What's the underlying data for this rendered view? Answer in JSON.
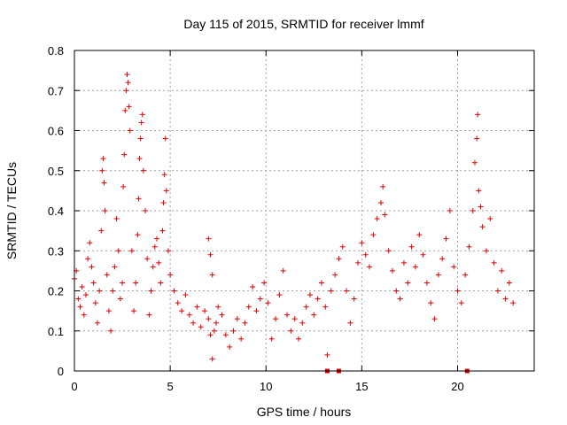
{
  "chart_data": {
    "type": "scatter",
    "title": "Day 115 of 2015, SRMTID for receiver lmmf",
    "xlabel": "GPS time / hours",
    "ylabel": "SRMTID / TECUs",
    "xlim": [
      0,
      24
    ],
    "ylim": [
      0,
      0.8
    ],
    "xticks": [
      0,
      5,
      10,
      15,
      20
    ],
    "yticks": [
      0,
      0.1,
      0.2,
      0.3,
      0.4,
      0.5,
      0.6,
      0.7,
      0.8
    ],
    "xtick_labels": [
      "0",
      "5",
      "10",
      "15",
      "20"
    ],
    "ytick_labels": [
      "0",
      "0.1",
      "0.2",
      "0.3",
      "0.4",
      "0.5",
      "0.6",
      "0.7",
      "0.8"
    ],
    "grid": true,
    "marker": "+",
    "color": "#e00000",
    "series": [
      {
        "name": "SRMTID",
        "points": [
          [
            0.0,
            0.23
          ],
          [
            0.1,
            0.25
          ],
          [
            0.2,
            0.18
          ],
          [
            0.3,
            0.16
          ],
          [
            0.4,
            0.21
          ],
          [
            0.5,
            0.14
          ],
          [
            0.6,
            0.19
          ],
          [
            0.7,
            0.28
          ],
          [
            0.8,
            0.32
          ],
          [
            0.9,
            0.26
          ],
          [
            1.0,
            0.22
          ],
          [
            1.1,
            0.17
          ],
          [
            1.2,
            0.12
          ],
          [
            1.3,
            0.2
          ],
          [
            1.4,
            0.35
          ],
          [
            1.45,
            0.5
          ],
          [
            1.5,
            0.53
          ],
          [
            1.55,
            0.47
          ],
          [
            1.6,
            0.4
          ],
          [
            1.7,
            0.24
          ],
          [
            1.8,
            0.15
          ],
          [
            1.9,
            0.1
          ],
          [
            2.0,
            0.2
          ],
          [
            2.1,
            0.26
          ],
          [
            2.2,
            0.38
          ],
          [
            2.3,
            0.3
          ],
          [
            2.4,
            0.18
          ],
          [
            2.5,
            0.22
          ],
          [
            2.55,
            0.46
          ],
          [
            2.6,
            0.54
          ],
          [
            2.65,
            0.65
          ],
          [
            2.7,
            0.7
          ],
          [
            2.75,
            0.74
          ],
          [
            2.8,
            0.72
          ],
          [
            2.85,
            0.66
          ],
          [
            2.9,
            0.6
          ],
          [
            3.0,
            0.3
          ],
          [
            3.1,
            0.15
          ],
          [
            3.2,
            0.22
          ],
          [
            3.3,
            0.34
          ],
          [
            3.35,
            0.43
          ],
          [
            3.4,
            0.53
          ],
          [
            3.45,
            0.58
          ],
          [
            3.5,
            0.62
          ],
          [
            3.55,
            0.64
          ],
          [
            3.6,
            0.5
          ],
          [
            3.7,
            0.4
          ],
          [
            3.8,
            0.28
          ],
          [
            3.9,
            0.14
          ],
          [
            4.0,
            0.2
          ],
          [
            4.1,
            0.26
          ],
          [
            4.2,
            0.31
          ],
          [
            4.3,
            0.33
          ],
          [
            4.4,
            0.27
          ],
          [
            4.5,
            0.22
          ],
          [
            4.6,
            0.35
          ],
          [
            4.65,
            0.42
          ],
          [
            4.7,
            0.49
          ],
          [
            4.75,
            0.58
          ],
          [
            4.8,
            0.45
          ],
          [
            4.9,
            0.3
          ],
          [
            5.0,
            0.24
          ],
          [
            5.2,
            0.2
          ],
          [
            5.4,
            0.17
          ],
          [
            5.6,
            0.15
          ],
          [
            5.8,
            0.19
          ],
          [
            6.0,
            0.14
          ],
          [
            6.2,
            0.12
          ],
          [
            6.4,
            0.16
          ],
          [
            6.6,
            0.11
          ],
          [
            6.8,
            0.15
          ],
          [
            7.0,
            0.13
          ],
          [
            7.1,
            0.09
          ],
          [
            7.2,
            0.03
          ],
          [
            7.3,
            0.1
          ],
          [
            7.4,
            0.12
          ],
          [
            7.5,
            0.16
          ],
          [
            7.0,
            0.33
          ],
          [
            7.1,
            0.29
          ],
          [
            7.2,
            0.24
          ],
          [
            7.7,
            0.14
          ],
          [
            7.9,
            0.09
          ],
          [
            8.1,
            0.06
          ],
          [
            8.3,
            0.1
          ],
          [
            8.5,
            0.13
          ],
          [
            8.7,
            0.08
          ],
          [
            8.9,
            0.12
          ],
          [
            9.1,
            0.16
          ],
          [
            9.3,
            0.21
          ],
          [
            9.5,
            0.15
          ],
          [
            9.7,
            0.18
          ],
          [
            9.9,
            0.22
          ],
          [
            10.1,
            0.17
          ],
          [
            10.3,
            0.08
          ],
          [
            10.5,
            0.13
          ],
          [
            10.7,
            0.19
          ],
          [
            10.9,
            0.25
          ],
          [
            11.1,
            0.14
          ],
          [
            11.3,
            0.1
          ],
          [
            11.5,
            0.13
          ],
          [
            11.7,
            0.08
          ],
          [
            11.9,
            0.12
          ],
          [
            12.1,
            0.16
          ],
          [
            12.3,
            0.19
          ],
          [
            12.5,
            0.14
          ],
          [
            12.7,
            0.18
          ],
          [
            12.9,
            0.22
          ],
          [
            13.1,
            0.16
          ],
          [
            13.2,
            0.04
          ],
          [
            13.4,
            0.2
          ],
          [
            13.6,
            0.24
          ],
          [
            13.8,
            0.28
          ],
          [
            14.0,
            0.31
          ],
          [
            14.2,
            0.2
          ],
          [
            14.4,
            0.12
          ],
          [
            14.6,
            0.18
          ],
          [
            14.8,
            0.27
          ],
          [
            15.0,
            0.32
          ],
          [
            15.2,
            0.29
          ],
          [
            15.4,
            0.26
          ],
          [
            15.6,
            0.34
          ],
          [
            15.8,
            0.38
          ],
          [
            16.0,
            0.42
          ],
          [
            16.1,
            0.46
          ],
          [
            16.2,
            0.39
          ],
          [
            16.4,
            0.3
          ],
          [
            16.6,
            0.25
          ],
          [
            16.8,
            0.2
          ],
          [
            17.0,
            0.18
          ],
          [
            17.2,
            0.27
          ],
          [
            17.4,
            0.22
          ],
          [
            17.6,
            0.31
          ],
          [
            17.8,
            0.26
          ],
          [
            18.0,
            0.34
          ],
          [
            18.2,
            0.29
          ],
          [
            18.4,
            0.22
          ],
          [
            18.6,
            0.17
          ],
          [
            18.8,
            0.13
          ],
          [
            19.0,
            0.24
          ],
          [
            19.2,
            0.28
          ],
          [
            19.4,
            0.33
          ],
          [
            19.6,
            0.4
          ],
          [
            19.8,
            0.26
          ],
          [
            20.0,
            0.2
          ],
          [
            20.2,
            0.17
          ],
          [
            20.4,
            0.24
          ],
          [
            20.6,
            0.31
          ],
          [
            20.8,
            0.4
          ],
          [
            20.9,
            0.52
          ],
          [
            21.0,
            0.58
          ],
          [
            21.05,
            0.64
          ],
          [
            21.1,
            0.45
          ],
          [
            21.2,
            0.41
          ],
          [
            21.3,
            0.36
          ],
          [
            21.5,
            0.3
          ],
          [
            21.7,
            0.38
          ],
          [
            21.9,
            0.27
          ],
          [
            22.1,
            0.2
          ],
          [
            22.3,
            0.25
          ],
          [
            22.5,
            0.18
          ],
          [
            22.7,
            0.22
          ],
          [
            22.9,
            0.17
          ]
        ]
      }
    ],
    "zero_markers_x": [
      13.2,
      13.8,
      20.5
    ]
  }
}
